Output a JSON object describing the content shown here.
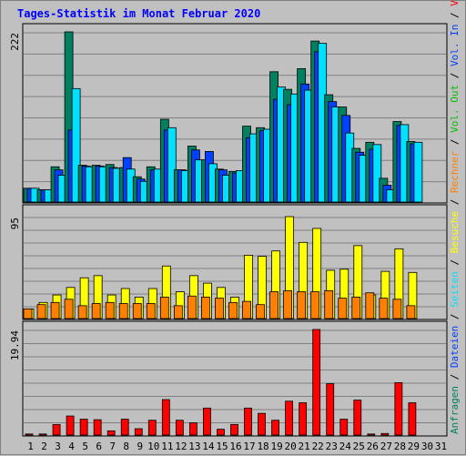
{
  "chart_data": {
    "type": "bar",
    "title": "Tages-Statistik im Monat Februar 2020",
    "categories": [
      "1",
      "2",
      "3",
      "4",
      "5",
      "6",
      "7",
      "8",
      "9",
      "10",
      "11",
      "12",
      "13",
      "14",
      "15",
      "16",
      "17",
      "18",
      "19",
      "20",
      "21",
      "22",
      "23",
      "24",
      "25",
      "26",
      "27",
      "28",
      "29",
      "30",
      "31"
    ],
    "weekend_days": [
      "1",
      "2",
      "8",
      "9",
      "15",
      "16",
      "22",
      "23",
      "29"
    ],
    "colors": {
      "anfragen": "#008060",
      "dateien": "#0040ff",
      "seiten": "#00e0ff",
      "besuche": "#ffff00",
      "rechner": "#ff8000",
      "volumen": "#ff0000",
      "vol_in": "#0040ff",
      "vol_out": "#00c000",
      "weekend_label": "#008040",
      "title": "#0000ff",
      "panel": "#c0c0c0",
      "grid": "#808080"
    },
    "panels": [
      {
        "id": "hits",
        "ymax_label": "222",
        "ymax": 222,
        "series": [
          {
            "name": "Anfragen",
            "values": [
              18,
              16,
              46,
              222,
              48,
              48,
              49,
              45,
              33,
              46,
              108,
              42,
              73,
              55,
              43,
              40,
              99,
              97,
              170,
              147,
              174,
              210,
              140,
              124,
              70,
              78,
              31,
              105,
              79,
              null,
              null
            ]
          },
          {
            "name": "Dateien",
            "values": [
              18,
              16,
              42,
              94,
              47,
              47,
              45,
              58,
              30,
              42,
              94,
              42,
              68,
              66,
              42,
              38,
              84,
              93,
              134,
              127,
              154,
              196,
              131,
              113,
              65,
              69,
              22,
              100,
              76,
              null,
              null
            ]
          },
          {
            "name": "Seiten",
            "values": [
              18,
              16,
              35,
              148,
              46,
              46,
              44,
              43,
              27,
              43,
              97,
              41,
              55,
              50,
              35,
              41,
              89,
              95,
              150,
              141,
              146,
              207,
              124,
              90,
              61,
              75,
              16,
              101,
              78,
              null,
              null
            ]
          }
        ]
      },
      {
        "id": "visits",
        "ymax_label": "95",
        "ymax": 95,
        "series": [
          {
            "name": "Besuche",
            "values": [
              9,
              15,
              22,
              29,
              38,
              40,
              22,
              28,
              20,
              28,
              49,
              25,
              40,
              33,
              29,
              20,
              59,
              58,
              63,
              95,
              71,
              84,
              45,
              46,
              68,
              22,
              44,
              65,
              43,
              null,
              null
            ]
          },
          {
            "name": "Rechner",
            "values": [
              9,
              13,
              15,
              18,
              12,
              14,
              15,
              14,
              14,
              14,
              20,
              12,
              21,
              20,
              19,
              15,
              16,
              13,
              25,
              26,
              25,
              25,
              26,
              19,
              20,
              24,
              19,
              18,
              12,
              null,
              null
            ]
          }
        ]
      },
      {
        "id": "volume",
        "ymax_label": "19.94",
        "ymax": 19.94,
        "series": [
          {
            "name": "Volumen",
            "values": [
              0.2,
              0.2,
              2,
              3.6,
              3,
              2.9,
              0.8,
              3,
              1.2,
              2.8,
              6.7,
              2.8,
              2.3,
              5.1,
              1.1,
              2,
              5.1,
              4.1,
              2.8,
              6.4,
              6.1,
              19.94,
              9.7,
              3,
              6.6,
              0.2,
              0.3,
              9.9,
              6.1,
              null,
              null
            ]
          }
        ]
      }
    ],
    "legend_right": [
      {
        "text": "Anfragen",
        "color": "#008060"
      },
      {
        "text": " / ",
        "color": "#000000"
      },
      {
        "text": "Dateien",
        "color": "#0040ff"
      },
      {
        "text": " / ",
        "color": "#000000"
      },
      {
        "text": "Seiten",
        "color": "#00e0ff"
      },
      {
        "text": " / ",
        "color": "#000000"
      },
      {
        "text": "Besuche",
        "color": "#ffff00"
      },
      {
        "text": " / ",
        "color": "#000000"
      },
      {
        "text": "Rechner",
        "color": "#ff8000"
      },
      {
        "text": " / ",
        "color": "#000000"
      },
      {
        "text": "Vol. Out",
        "color": "#00c000"
      },
      {
        "text": " / ",
        "color": "#000000"
      },
      {
        "text": "Vol. In",
        "color": "#0040ff"
      },
      {
        "text": " / ",
        "color": "#000000"
      },
      {
        "text": "Volumen",
        "color": "#ff0000"
      }
    ]
  }
}
